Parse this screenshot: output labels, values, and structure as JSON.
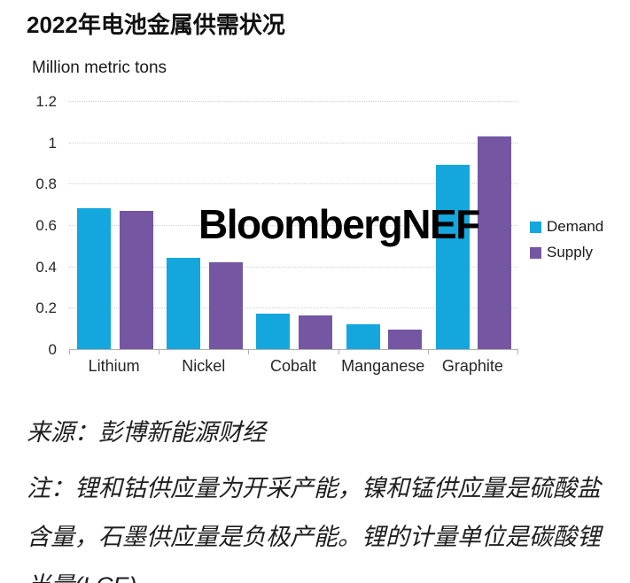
{
  "chart_data": {
    "type": "bar",
    "title": "2022年电池金属供需状况",
    "unit_label": "Million metric tons",
    "categories": [
      "Lithium",
      "Nickel",
      "Cobalt",
      "Manganese",
      "Graphite"
    ],
    "series": [
      {
        "name": "Demand",
        "color": "#14A7DE",
        "values": [
          0.68,
          0.44,
          0.17,
          0.12,
          0.89
        ]
      },
      {
        "name": "Supply",
        "color": "#7456A3",
        "values": [
          0.67,
          0.42,
          0.165,
          0.095,
          1.03
        ]
      }
    ],
    "ylim": [
      0,
      1.2
    ],
    "yticks": [
      "0",
      "0.2",
      "0.4",
      "0.6",
      "0.8",
      "1",
      "1.2"
    ],
    "grid": "horizontal-dotted",
    "legend_position": "right",
    "watermark": "BloombergNEF"
  },
  "footer": {
    "source": "来源：彭博新能源财经",
    "note": "注：锂和钴供应量为开采产能，镍和锰供应量是硫酸盐含量，石墨供应量是负极产能。锂的计量单位是碳酸锂当量(LCE)。"
  }
}
